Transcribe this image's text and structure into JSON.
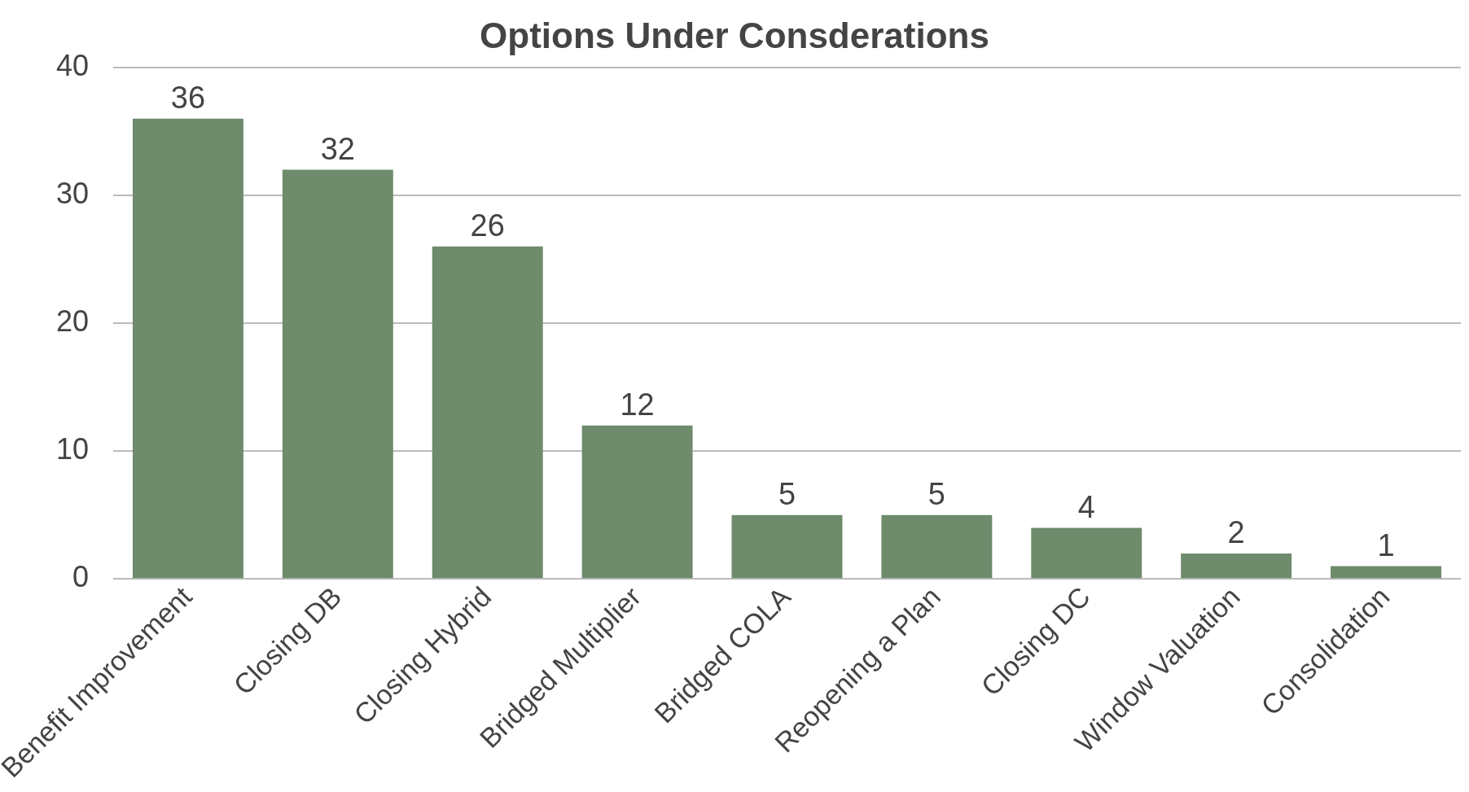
{
  "chart_data": {
    "type": "bar",
    "title": "Options Under Consderations",
    "categories": [
      "Benefit Improvement",
      "Closing DB",
      "Closing Hybrid",
      "Bridged Multiplier",
      "Bridged COLA",
      "Reopening a Plan",
      "Closing DC",
      "Window Valuation",
      "Consolidation"
    ],
    "values": [
      36,
      32,
      26,
      12,
      5,
      5,
      4,
      2,
      1
    ],
    "color": "#6e8b6c",
    "ylim": [
      0,
      40
    ],
    "yticks": [
      0,
      10,
      20,
      30,
      40
    ],
    "grid": "y",
    "data_labels": true,
    "legend": false
  }
}
